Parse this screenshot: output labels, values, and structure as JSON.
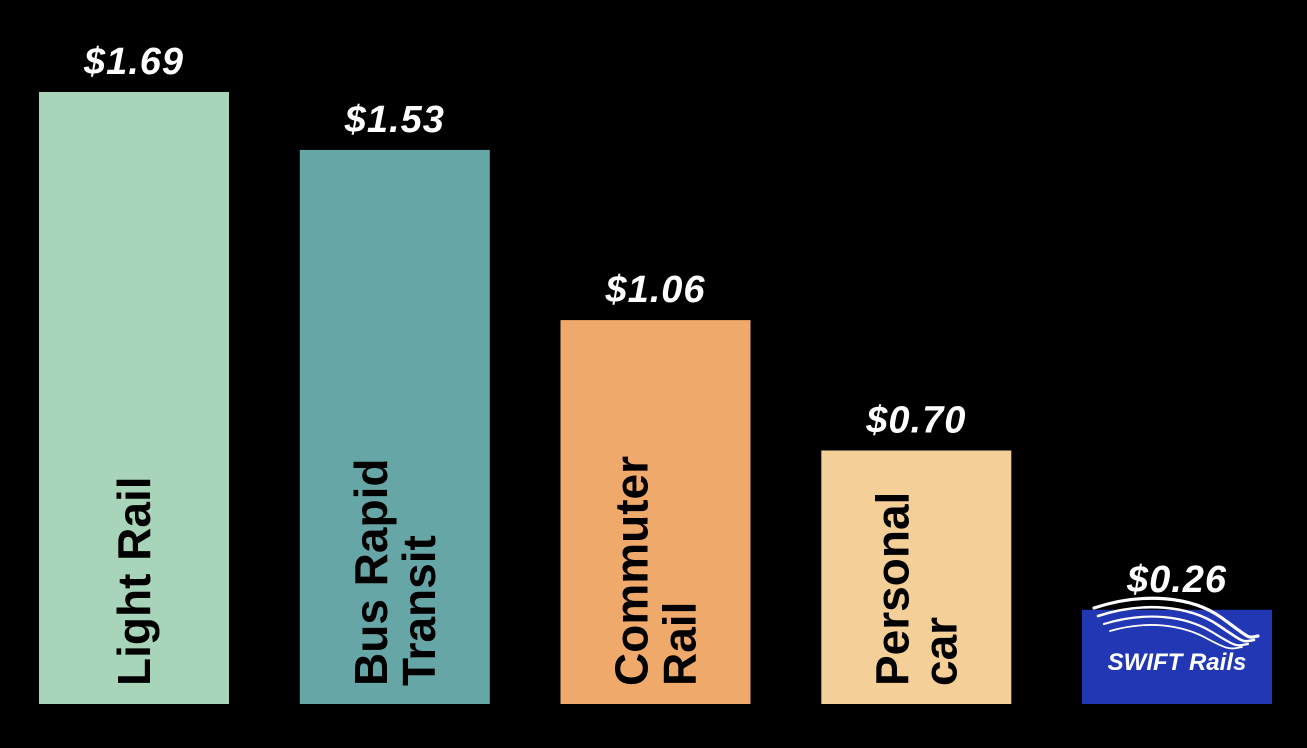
{
  "chart_data": {
    "type": "bar",
    "title": "",
    "xlabel": "",
    "ylabel": "",
    "ylim": [
      0,
      1.69
    ],
    "grid": false,
    "legend": "none",
    "categories": [
      "Light Rail",
      "Bus Rapid Transit",
      "Commuter Rail",
      "Personal car",
      "SWIFT Rails"
    ],
    "category_label_lines": [
      [
        "Light Rail"
      ],
      [
        "Bus Rapid",
        "Transit"
      ],
      [
        "Commuter",
        "Rail"
      ],
      [
        "Personal",
        "car"
      ],
      []
    ],
    "values": [
      1.69,
      1.53,
      1.06,
      0.7,
      0.26
    ],
    "value_labels": [
      "$1.69",
      "$1.53",
      "$1.06",
      "$0.70",
      "$0.26"
    ],
    "colors": [
      "#a8d5b9",
      "#66a6a6",
      "#efa96a",
      "#f4cf97",
      "#2237b3"
    ],
    "background": "#000000",
    "logo": {
      "bar_index": 4,
      "text": "SWIFT Rails",
      "icon": "swoosh-waves-icon"
    }
  }
}
